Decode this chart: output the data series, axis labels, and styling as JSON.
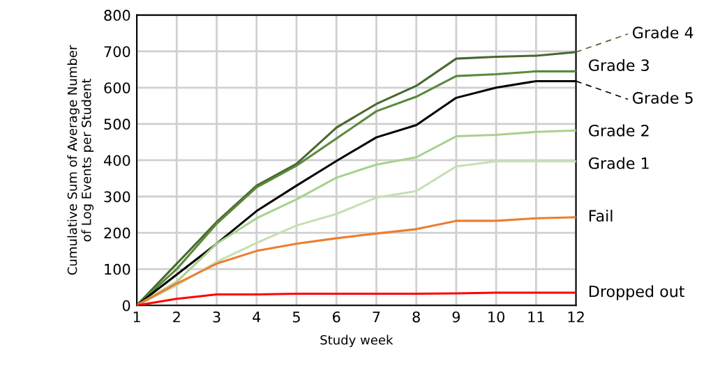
{
  "chart_data": {
    "type": "line",
    "xlabel": "Study week",
    "ylabel": "Cumulative Sum of Average Number\nof Log Events per Student",
    "x": [
      1,
      2,
      3,
      4,
      5,
      6,
      7,
      8,
      9,
      10,
      11,
      12
    ],
    "xlim": [
      1,
      12
    ],
    "xticks": [
      1,
      2,
      3,
      4,
      5,
      6,
      7,
      8,
      9,
      10,
      11,
      12
    ],
    "ylim": [
      0,
      800
    ],
    "yticks": [
      0,
      100,
      200,
      300,
      400,
      500,
      600,
      700,
      800
    ],
    "grid": true,
    "legend": "right",
    "marker": "none",
    "line_style": "solid",
    "series": [
      {
        "name": "Grade 4",
        "color": "#476930",
        "values": [
          0,
          115,
          230,
          330,
          390,
          490,
          555,
          605,
          680,
          685,
          688,
          698
        ]
      },
      {
        "name": "Grade 3",
        "color": "#5a8a3c",
        "values": [
          0,
          100,
          225,
          325,
          385,
          460,
          535,
          575,
          632,
          637,
          645,
          645
        ]
      },
      {
        "name": "Grade 5",
        "color": "#000000",
        "values": [
          0,
          85,
          170,
          260,
          330,
          398,
          463,
          497,
          572,
          600,
          618,
          618
        ]
      },
      {
        "name": "Grade 2",
        "color": "#a9d18e",
        "values": [
          0,
          65,
          170,
          240,
          292,
          352,
          388,
          408,
          466,
          470,
          478,
          482
        ]
      },
      {
        "name": "Grade 1",
        "color": "#c5e0b4",
        "values": [
          0,
          55,
          120,
          172,
          220,
          252,
          297,
          315,
          383,
          397,
          397,
          397
        ]
      },
      {
        "name": "Fail",
        "color": "#ed7d31",
        "values": [
          0,
          60,
          115,
          150,
          170,
          185,
          198,
          210,
          233,
          233,
          240,
          243
        ]
      },
      {
        "name": "Dropped out",
        "color": "#ff0000",
        "values": [
          0,
          18,
          30,
          30,
          32,
          32,
          32,
          32,
          33,
          35,
          35,
          35
        ]
      }
    ]
  }
}
